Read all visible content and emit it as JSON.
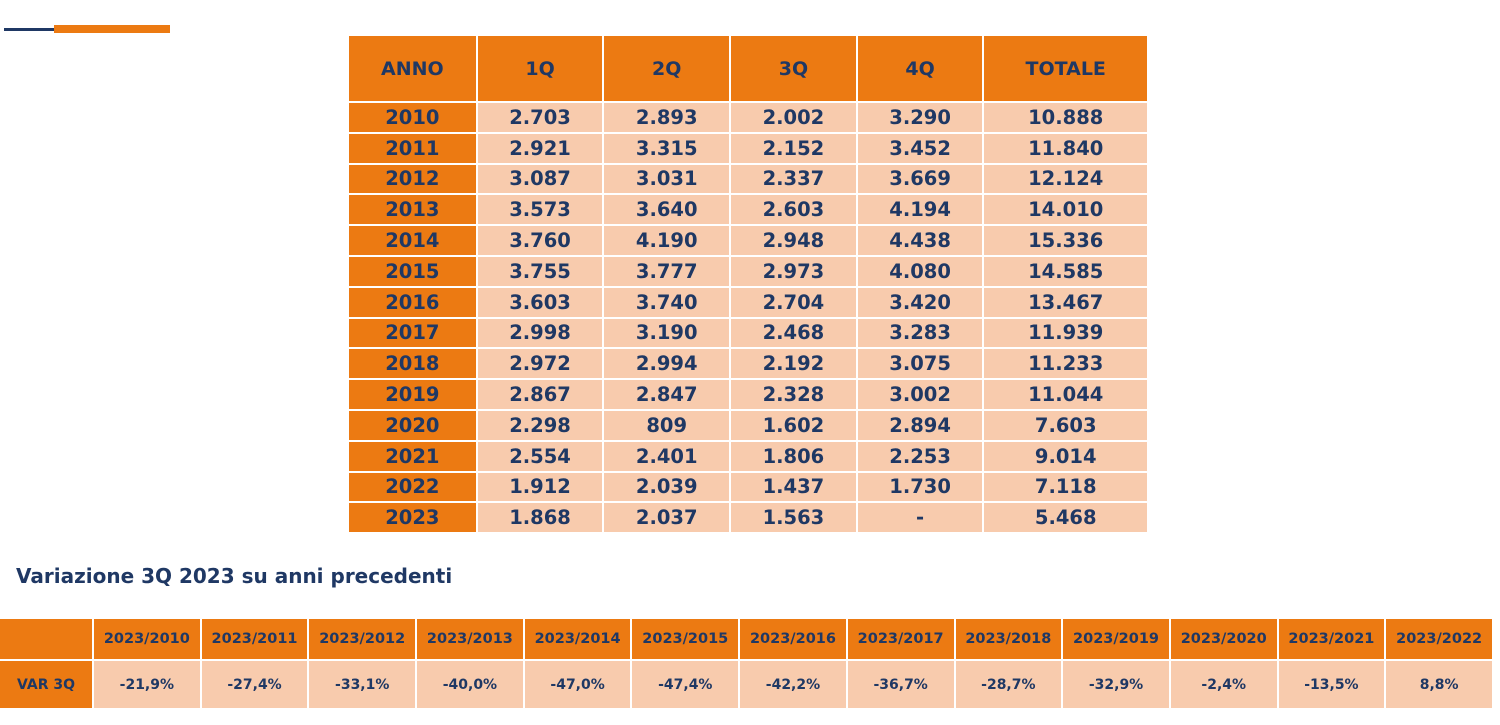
{
  "main_table": {
    "headers": [
      "ANNO",
      "1Q",
      "2Q",
      "3Q",
      "4Q",
      "TOTALE"
    ],
    "rows": [
      [
        "2010",
        "2.703",
        "2.893",
        "2.002",
        "3.290",
        "10.888"
      ],
      [
        "2011",
        "2.921",
        "3.315",
        "2.152",
        "3.452",
        "11.840"
      ],
      [
        "2012",
        "3.087",
        "3.031",
        "2.337",
        "3.669",
        "12.124"
      ],
      [
        "2013",
        "3.573",
        "3.640",
        "2.603",
        "4.194",
        "14.010"
      ],
      [
        "2014",
        "3.760",
        "4.190",
        "2.948",
        "4.438",
        "15.336"
      ],
      [
        "2015",
        "3.755",
        "3.777",
        "2.973",
        "4.080",
        "14.585"
      ],
      [
        "2016",
        "3.603",
        "3.740",
        "2.704",
        "3.420",
        "13.467"
      ],
      [
        "2017",
        "2.998",
        "3.190",
        "2.468",
        "3.283",
        "11.939"
      ],
      [
        "2018",
        "2.972",
        "2.994",
        "2.192",
        "3.075",
        "11.233"
      ],
      [
        "2019",
        "2.867",
        "2.847",
        "2.328",
        "3.002",
        "11.044"
      ],
      [
        "2020",
        "2.298",
        "809",
        "1.602",
        "2.894",
        "7.603"
      ],
      [
        "2021",
        "2.554",
        "2.401",
        "1.806",
        "2.253",
        "9.014"
      ],
      [
        "2022",
        "1.912",
        "2.039",
        "1.437",
        "1.730",
        "7.118"
      ],
      [
        "2023",
        "1.868",
        "2.037",
        "1.563",
        "-",
        "5.468"
      ]
    ]
  },
  "subtitle": "Variazione 3Q 2023 su anni precedenti",
  "var_table": {
    "headers": [
      "2023/2010",
      "2023/2011",
      "2023/2012",
      "2023/2013",
      "2023/2014",
      "2023/2015",
      "2023/2016",
      "2023/2017",
      "2023/2018",
      "2023/2019",
      "2023/2020",
      "2023/2021",
      "2023/2022"
    ],
    "row_label": "VAR 3Q",
    "values": [
      "-21,9%",
      "-27,4%",
      "-33,1%",
      "-40,0%",
      "-47,0%",
      "-47,4%",
      "-42,2%",
      "-36,7%",
      "-28,7%",
      "-32,9%",
      "-2,4%",
      "-13,5%",
      "8,8%"
    ]
  },
  "colors": {
    "orange": "#ec7a12",
    "peach": "#f8cbad",
    "navy": "#1f3864"
  }
}
